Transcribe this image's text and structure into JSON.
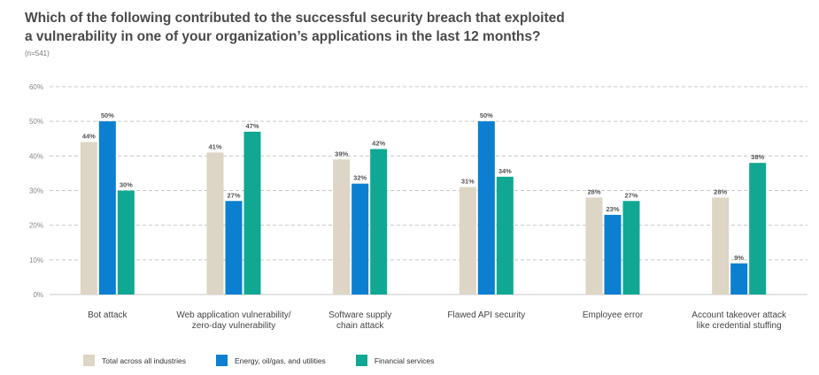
{
  "title_lines": [
    "Which of the following contributed to the successful security breach that exploited",
    "a vulnerability in one of your organization’s applications in the last 12 months?"
  ],
  "subtitle": "(n=541)",
  "colors": {
    "total": "#ddd5c5",
    "energy": "#0c7fd0",
    "financial": "#10a892",
    "grid": "#c8c8c8",
    "axis_text": "#888888",
    "label_text": "#555555"
  },
  "chart_data": {
    "type": "bar",
    "title": "Which of the following contributed to the successful security breach that exploited a vulnerability in one of your organization’s applications in the last 12 months?",
    "xlabel": "",
    "ylabel": "",
    "ylim": [
      0,
      60
    ],
    "y_ticks": [
      0,
      10,
      20,
      30,
      40,
      50,
      60
    ],
    "y_tick_labels": [
      "0%",
      "10%",
      "20%",
      "30%",
      "40%",
      "50%",
      "60%"
    ],
    "grid": true,
    "legend_position": "bottom-left",
    "categories": [
      [
        "Bot attack"
      ],
      [
        "Web application vulnerability/",
        "zero-day vulnerability"
      ],
      [
        "Software supply",
        "chain attack"
      ],
      [
        "Flawed API security"
      ],
      [
        "Employee error"
      ],
      [
        "Account takeover attack",
        "like credential stuffing"
      ]
    ],
    "series": [
      {
        "key": "total",
        "name": "Total across all industries",
        "values": [
          44,
          41,
          39,
          31,
          28,
          28
        ],
        "labels": [
          "44%",
          "41%",
          "39%",
          "31%",
          "28%",
          "28%"
        ]
      },
      {
        "key": "energy",
        "name": "Energy, oil/gas, and utilities",
        "values": [
          50,
          27,
          32,
          50,
          23,
          9
        ],
        "labels": [
          "50%",
          "27%",
          "32%",
          "50%",
          "23%",
          "9%"
        ]
      },
      {
        "key": "financial",
        "name": "Financial services",
        "values": [
          30,
          47,
          42,
          34,
          27,
          38
        ],
        "labels": [
          "30%",
          "47%",
          "42%",
          "34%",
          "27%",
          "38%"
        ]
      }
    ]
  }
}
